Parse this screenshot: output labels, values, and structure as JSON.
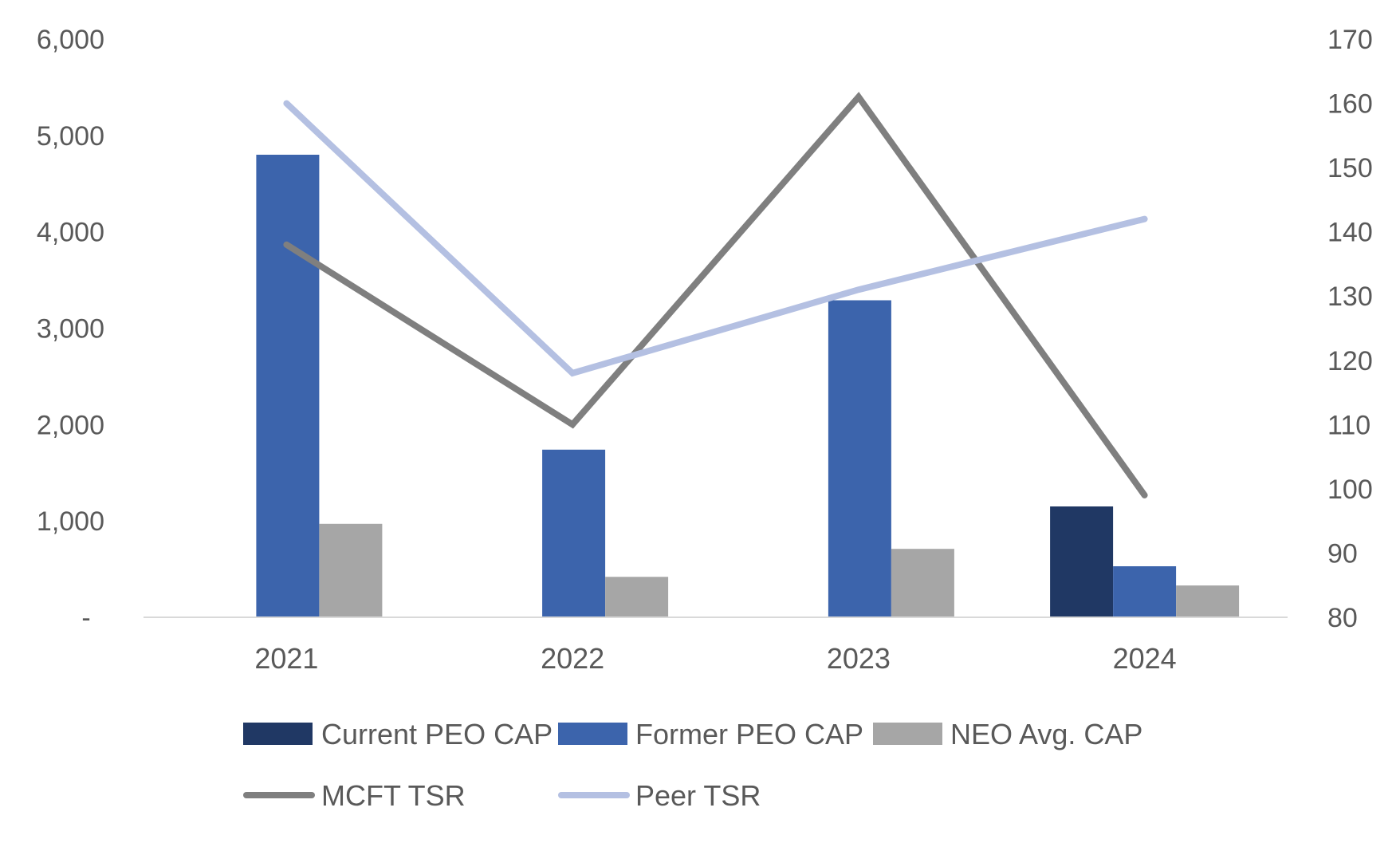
{
  "chart_data": {
    "type": "bar",
    "categories": [
      "2021",
      "2022",
      "2023",
      "2024"
    ],
    "series": [
      {
        "name": "Current PEO CAP",
        "kind": "bar",
        "axis": "left",
        "color": "#203864",
        "values": [
          null,
          null,
          null,
          1150
        ]
      },
      {
        "name": "Former PEO CAP",
        "kind": "bar",
        "axis": "left",
        "color": "#3c64ac",
        "values": [
          4800,
          1740,
          3290,
          530
        ]
      },
      {
        "name": "NEO Avg. CAP",
        "kind": "bar",
        "axis": "left",
        "color": "#a6a6a6",
        "values": [
          970,
          420,
          710,
          330
        ]
      },
      {
        "name": "MCFT TSR",
        "kind": "line",
        "axis": "right",
        "color": "#7f7f7f",
        "values": [
          138,
          110,
          161,
          99
        ]
      },
      {
        "name": "Peer TSR",
        "kind": "line",
        "axis": "right",
        "color": "#b4c0e2",
        "values": [
          160,
          118,
          131,
          142
        ]
      }
    ],
    "y_left": {
      "ylim": [
        0,
        6000
      ],
      "ticks": [
        0,
        1000,
        2000,
        3000,
        4000,
        5000,
        6000
      ],
      "tick_labels": [
        "-",
        "1,000",
        "2,000",
        "3,000",
        "4,000",
        "5,000",
        "6,000"
      ]
    },
    "y_right": {
      "ylim": [
        80,
        170
      ],
      "ticks": [
        80,
        90,
        100,
        110,
        120,
        130,
        140,
        150,
        160,
        170
      ],
      "tick_labels": [
        "80",
        "90",
        "100",
        "110",
        "120",
        "130",
        "140",
        "150",
        "160",
        "170"
      ]
    },
    "title": "",
    "xlabel": "",
    "ylabel": "",
    "grid": false,
    "legend_position": "bottom"
  }
}
